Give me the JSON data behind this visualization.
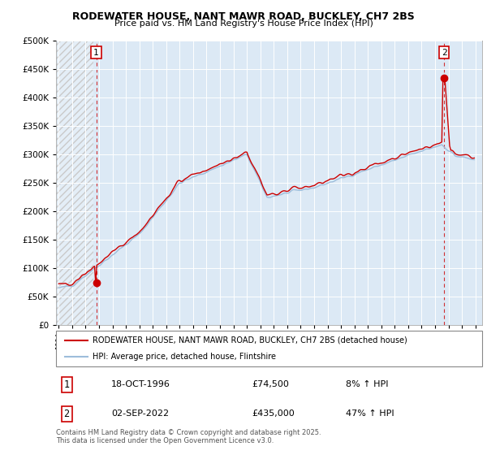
{
  "title1": "RODEWATER HOUSE, NANT MAWR ROAD, BUCKLEY, CH7 2BS",
  "title2": "Price paid vs. HM Land Registry's House Price Index (HPI)",
  "legend_label1": "RODEWATER HOUSE, NANT MAWR ROAD, BUCKLEY, CH7 2BS (detached house)",
  "legend_label2": "HPI: Average price, detached house, Flintshire",
  "annotation1_label": "1",
  "annotation1_date": "18-OCT-1996",
  "annotation1_price": "£74,500",
  "annotation1_hpi": "8% ↑ HPI",
  "annotation1_year": 1996.79,
  "annotation1_value": 74500,
  "annotation2_label": "2",
  "annotation2_date": "02-SEP-2022",
  "annotation2_price": "£435,000",
  "annotation2_hpi": "47% ↑ HPI",
  "annotation2_year": 2022.67,
  "annotation2_value": 435000,
  "hpi_color": "#9dbddb",
  "price_color": "#cc0000",
  "plot_bg_color": "#dce9f5",
  "footer": "Contains HM Land Registry data © Crown copyright and database right 2025.\nThis data is licensed under the Open Government Licence v3.0.",
  "ylim": [
    0,
    500000
  ],
  "xlim_start": 1993.8,
  "xlim_end": 2025.5,
  "hatch_end": 1996.6
}
